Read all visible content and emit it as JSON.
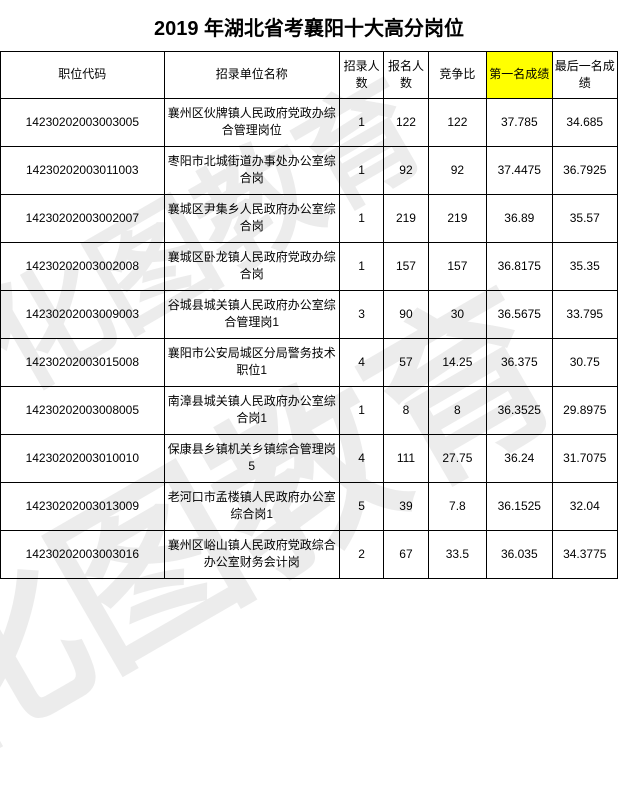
{
  "title": "2019 年湖北省考襄阳十大高分岗位",
  "columns": {
    "code": "职位代码",
    "org": "招录单位名称",
    "recruit": "招录人数",
    "apply": "报名人数",
    "ratio": "竞争比",
    "score1": "第一名成绩",
    "scoreLast": "最后一名成绩"
  },
  "style": {
    "highlight_bg": "#ffff00",
    "border_color": "#000000",
    "font_size_body": 12,
    "font_size_title": 20
  },
  "rows": [
    {
      "code": "14230202003003005",
      "org": "襄州区伙牌镇人民政府党政办综合管理岗位",
      "recruit": "1",
      "apply": "122",
      "ratio": "122",
      "score1": "37.785",
      "scoreLast": "34.685"
    },
    {
      "code": "14230202003011003",
      "org": "枣阳市北城街道办事处办公室综合岗",
      "recruit": "1",
      "apply": "92",
      "ratio": "92",
      "score1": "37.4475",
      "scoreLast": "36.7925"
    },
    {
      "code": "14230202003002007",
      "org": "襄城区尹集乡人民政府办公室综合岗",
      "recruit": "1",
      "apply": "219",
      "ratio": "219",
      "score1": "36.89",
      "scoreLast": "35.57"
    },
    {
      "code": "14230202003002008",
      "org": "襄城区卧龙镇人民政府党政办综合岗",
      "recruit": "1",
      "apply": "157",
      "ratio": "157",
      "score1": "36.8175",
      "scoreLast": "35.35"
    },
    {
      "code": "14230202003009003",
      "org": "谷城县城关镇人民政府办公室综合管理岗1",
      "recruit": "3",
      "apply": "90",
      "ratio": "30",
      "score1": "36.5675",
      "scoreLast": "33.795"
    },
    {
      "code": "14230202003015008",
      "org": "襄阳市公安局城区分局警务技术职位1",
      "recruit": "4",
      "apply": "57",
      "ratio": "14.25",
      "score1": "36.375",
      "scoreLast": "30.75"
    },
    {
      "code": "14230202003008005",
      "org": "南漳县城关镇人民政府办公室综合岗1",
      "recruit": "1",
      "apply": "8",
      "ratio": "8",
      "score1": "36.3525",
      "scoreLast": "29.8975"
    },
    {
      "code": "14230202003010010",
      "org": "保康县乡镇机关乡镇综合管理岗5",
      "recruit": "4",
      "apply": "111",
      "ratio": "27.75",
      "score1": "36.24",
      "scoreLast": "31.7075"
    },
    {
      "code": "14230202003013009",
      "org": "老河口市孟楼镇人民政府办公室综合岗1",
      "recruit": "5",
      "apply": "39",
      "ratio": "7.8",
      "score1": "36.1525",
      "scoreLast": "32.04"
    },
    {
      "code": "14230202003003016",
      "org": "襄州区峪山镇人民政府党政综合办公室财务会计岗",
      "recruit": "2",
      "apply": "67",
      "ratio": "33.5",
      "score1": "36.035",
      "scoreLast": "34.3775"
    }
  ],
  "watermark": "化图教育"
}
